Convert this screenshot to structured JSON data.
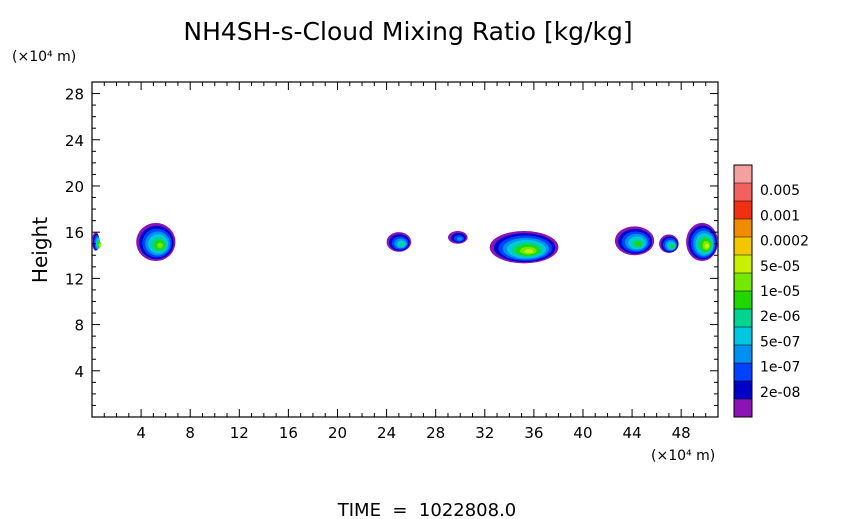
{
  "chart_data": {
    "type": "heatmap",
    "title": "NH4SH-s-Cloud Mixing Ratio [kg/kg]",
    "ylabel": "Height",
    "y_unit_label": "(×10⁴ m)",
    "x_unit_label": "(×10⁴ m)",
    "footer": "TIME  =  1022808.0",
    "x_ticks": [
      "4",
      "8",
      "12",
      "16",
      "20",
      "24",
      "28",
      "32",
      "36",
      "40",
      "44",
      "48"
    ],
    "y_ticks": [
      "4",
      "8",
      "12",
      "16",
      "20",
      "24",
      "28"
    ],
    "xlim": [
      0,
      51
    ],
    "ylim": [
      0,
      29
    ],
    "grid": false,
    "legend": {
      "position": "right",
      "labels": [
        "0.005",
        "0.001",
        "0.0002",
        "5e-05",
        "1e-05",
        "2e-06",
        "5e-07",
        "1e-07",
        "2e-08"
      ],
      "colors": [
        "#f4a0a0",
        "#f26060",
        "#f03010",
        "#f08c00",
        "#f2c600",
        "#c8f000",
        "#74e800",
        "#20d800",
        "#00d490",
        "#00c8e0",
        "#0090f0",
        "#0040ff",
        "#0000c8",
        "#8c14b4"
      ]
    },
    "clouds": [
      {
        "x": [
          0,
          0.6
        ],
        "y": [
          14.4,
          16.0
        ],
        "level": 8
      },
      {
        "x": [
          3.6,
          6.8
        ],
        "y": [
          13.5,
          16.8
        ],
        "level": 7
      },
      {
        "x": [
          24.0,
          26.0
        ],
        "y": [
          14.3,
          16.0
        ],
        "level": 5
      },
      {
        "x": [
          29.0,
          30.6
        ],
        "y": [
          15.0,
          16.1
        ],
        "level": 3
      },
      {
        "x": [
          32.4,
          38.0
        ],
        "y": [
          13.3,
          16.1
        ],
        "level": 8
      },
      {
        "x": [
          42.6,
          45.8
        ],
        "y": [
          14.0,
          16.5
        ],
        "level": 6
      },
      {
        "x": [
          46.2,
          47.8
        ],
        "y": [
          14.2,
          15.8
        ],
        "level": 6
      },
      {
        "x": [
          48.4,
          51.0
        ],
        "y": [
          13.5,
          16.8
        ],
        "level": 8
      }
    ]
  }
}
